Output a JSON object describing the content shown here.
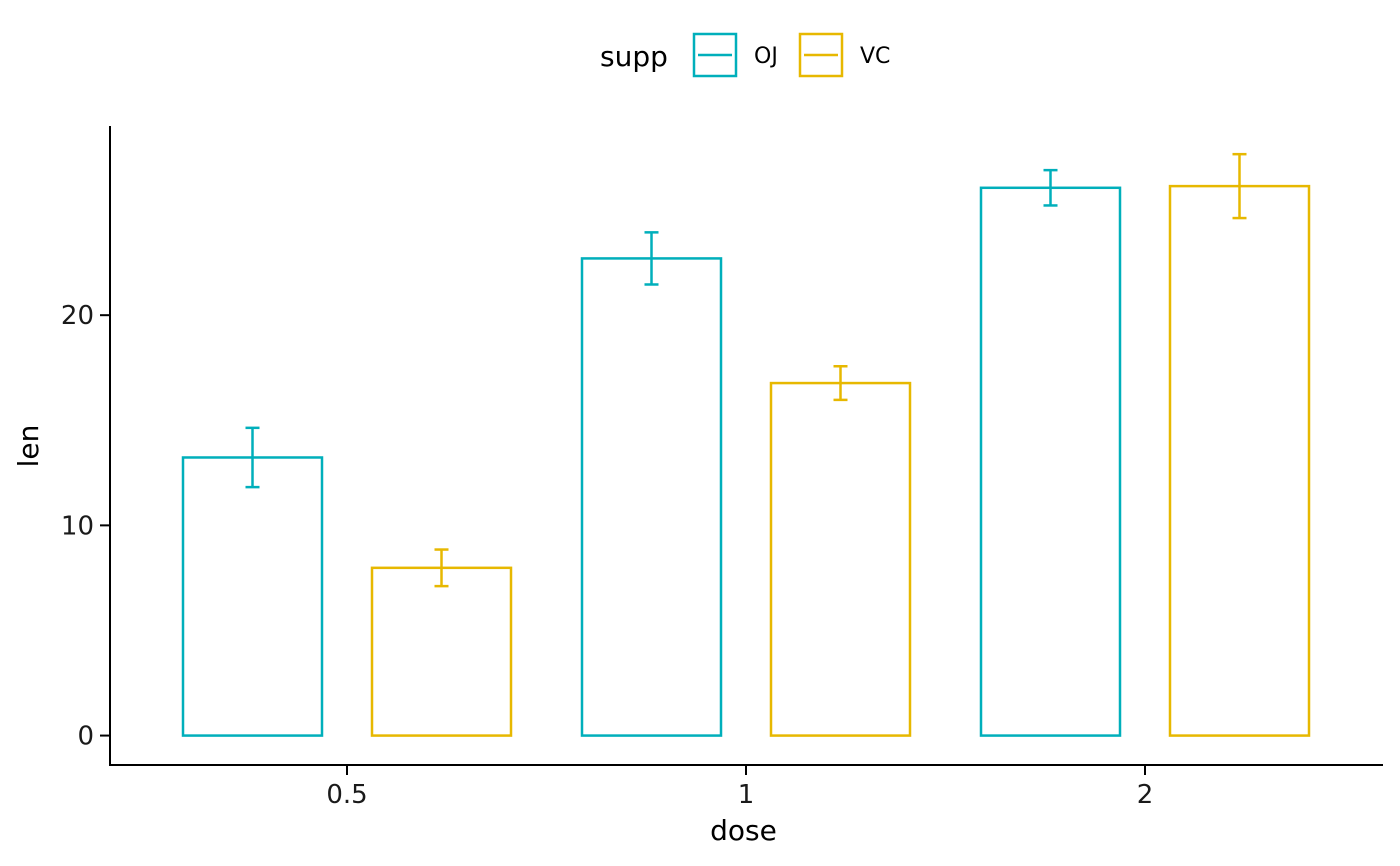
{
  "chart_data": {
    "type": "bar",
    "title": "",
    "xlabel": "dose",
    "ylabel": "len",
    "categories": [
      "0.5",
      "1",
      "2"
    ],
    "legend": {
      "title": "supp",
      "position": "top"
    },
    "grid": false,
    "ylim": [
      -1.4,
      29
    ],
    "yticks": [
      0,
      10,
      20
    ],
    "series": [
      {
        "name": "OJ",
        "color": "#00AFBB",
        "values": [
          13.23,
          22.7,
          26.06
        ],
        "error": [
          1.41,
          1.24,
          0.84
        ]
      },
      {
        "name": "VC",
        "color": "#E7B800",
        "values": [
          7.98,
          16.77,
          26.14
        ],
        "error": [
          0.87,
          0.8,
          1.52
        ]
      }
    ]
  }
}
